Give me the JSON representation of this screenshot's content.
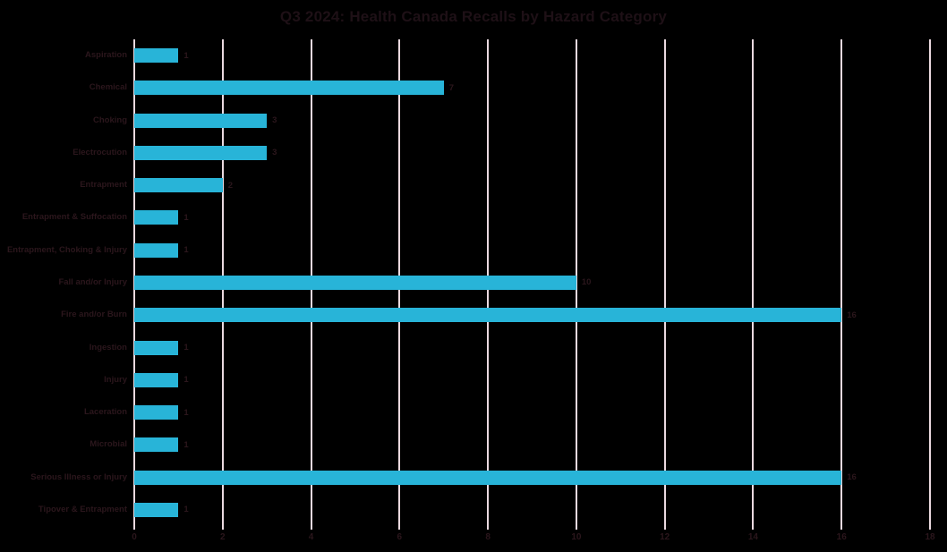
{
  "title": "Q3 2024: Health Canada Recalls by Hazard Category",
  "colors": {
    "background": "#000000",
    "bar": "#28b4d8",
    "gridline": "#ead9df",
    "title_text": "#1e1016",
    "axis_text": "#2b161c"
  },
  "chart_data": {
    "type": "bar",
    "orientation": "horizontal",
    "title": "Q3 2024: Health Canada Recalls by Hazard Category",
    "categories": [
      "Aspiration",
      "Chemical",
      "Choking",
      "Electrocution",
      "Entrapment",
      "Entrapment & Suffocation",
      "Entrapment, Choking & Injury",
      "Fall and/or Injury",
      "Fire and/or Burn",
      "Ingestion",
      "Injury",
      "Laceration",
      "Microbial",
      "Serious Illness or Injury",
      "Tipover & Entrapment"
    ],
    "values": [
      1,
      7,
      3,
      3,
      2,
      1,
      1,
      10,
      16,
      1,
      1,
      1,
      1,
      16,
      1
    ],
    "data_labels": [
      "1",
      "7",
      "3",
      "3",
      "2",
      "1",
      "1",
      "10",
      "16",
      "1",
      "1",
      "1",
      "1",
      "16",
      "1"
    ],
    "xlabel": "",
    "ylabel": "",
    "xlim": [
      0,
      18
    ],
    "x_ticks": [
      0,
      2,
      4,
      6,
      8,
      10,
      12,
      14,
      16,
      18
    ],
    "grid": true,
    "legend": false
  }
}
